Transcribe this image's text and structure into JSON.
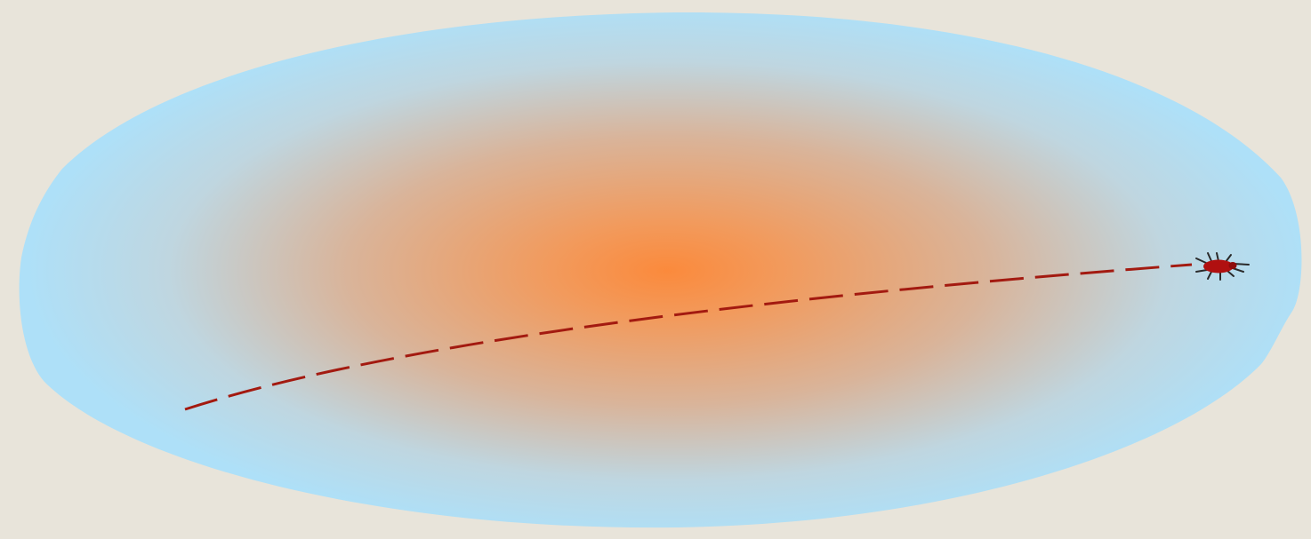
{
  "scene": {
    "background_color": "#e8e4da",
    "field": {
      "shape": "ellipse",
      "outer_color": "#aee0f8",
      "mid_color": "#d9b49a",
      "center_color": "#fb8a3c"
    },
    "path": {
      "style": "dashed",
      "color": "#a31a10"
    },
    "bug": {
      "icon": "bug-icon",
      "body_color": "#b01010",
      "leg_color": "#2a2a2a"
    }
  }
}
